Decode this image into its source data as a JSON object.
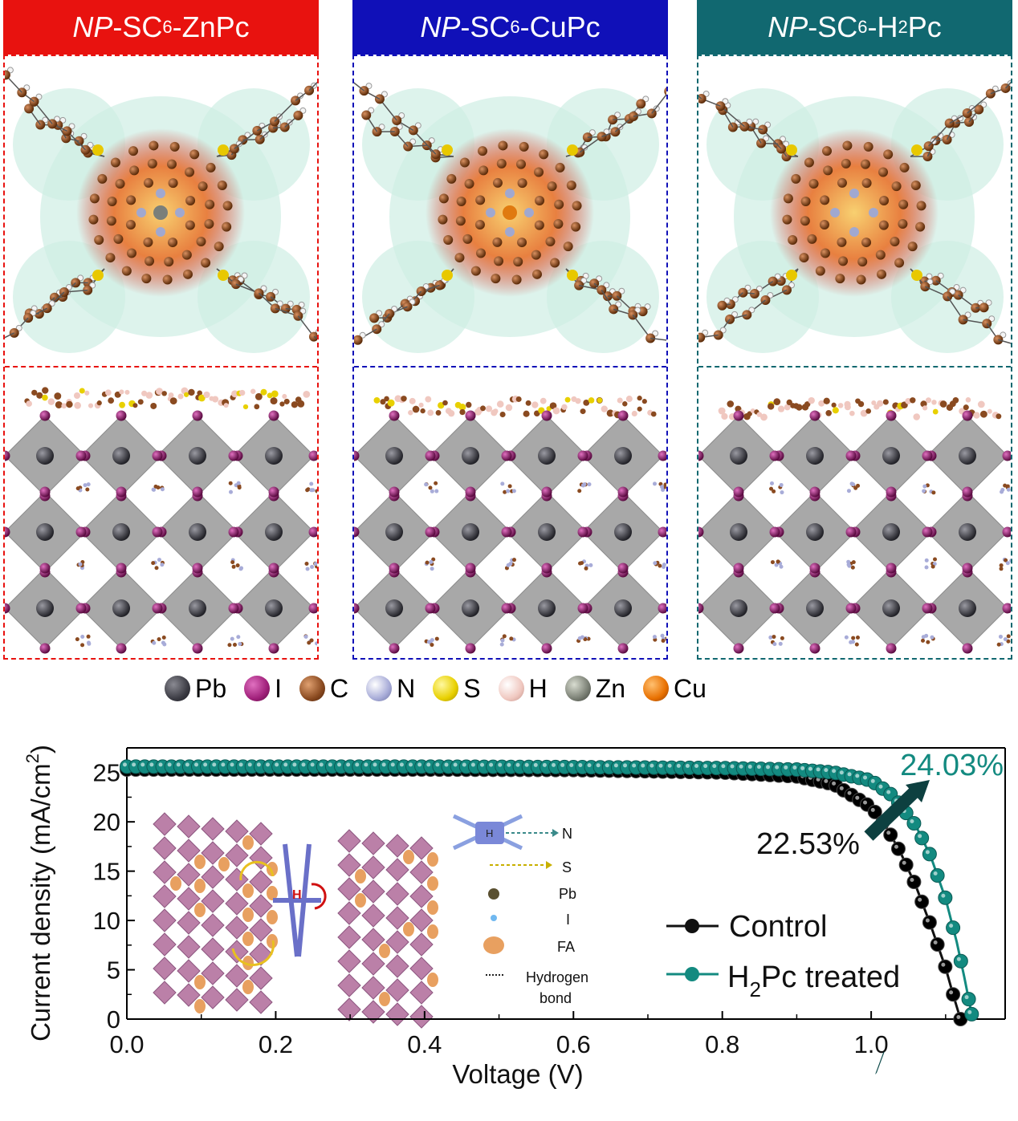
{
  "panels": [
    {
      "label_italic": "NP",
      "label_rest": "-SC",
      "sub": "6",
      "label_tail": "-ZnPc",
      "color": "#e8120f",
      "metal": "#7a7f7a"
    },
    {
      "label_italic": "NP",
      "label_rest": "-SC",
      "sub": "6",
      "label_tail": "-CuPc",
      "color": "#1010b8",
      "metal": "#e07a10"
    },
    {
      "label_italic": "NP",
      "label_rest": "-SC",
      "sub": "6",
      "label_tail": "-H",
      "sub2": "2",
      "label_tail2": "Pc",
      "color": "#116870",
      "metal": "#b08a9a"
    }
  ],
  "legend": [
    {
      "label": "Pb",
      "color": "#3c3c44",
      "icon": "pb-ball-icon"
    },
    {
      "label": "I",
      "color": "#a0207a",
      "icon": "iodine-ball-icon"
    },
    {
      "label": "C",
      "color": "#8a4a20",
      "icon": "carbon-ball-icon"
    },
    {
      "label": "N",
      "color": "#a8acd8",
      "icon": "nitrogen-ball-icon"
    },
    {
      "label": "S",
      "color": "#e8d000",
      "icon": "sulfur-ball-icon"
    },
    {
      "label": "H",
      "color": "#f0c8c0",
      "icon": "hydrogen-ball-icon"
    },
    {
      "label": "Zn",
      "color": "#7a7f74",
      "icon": "zinc-ball-icon"
    },
    {
      "label": "Cu",
      "color": "#e87000",
      "icon": "copper-ball-icon"
    }
  ],
  "chart_data": {
    "type": "line",
    "xlabel": "Voltage (V)",
    "ylabel": "Current density (mA/cm",
    "ylabel_sup": "2",
    "ylabel_close": ")",
    "xlim": [
      0.0,
      1.18
    ],
    "ylim": [
      0,
      27.5
    ],
    "xticks": [
      "0.0",
      "0.2",
      "0.4",
      "0.6",
      "0.8",
      "1.0"
    ],
    "yticks": [
      "0",
      "5",
      "10",
      "15",
      "20",
      "25"
    ],
    "series": [
      {
        "name": "Control",
        "color": "#111111",
        "x": [
          0.0,
          0.2,
          0.4,
          0.6,
          0.8,
          0.9,
          0.95,
          1.0,
          1.02,
          1.04,
          1.06,
          1.08,
          1.1,
          1.11,
          1.12
        ],
        "y": [
          25.3,
          25.3,
          25.3,
          25.25,
          25.0,
          24.6,
          23.8,
          21.5,
          19.5,
          16.8,
          13.5,
          9.5,
          5.2,
          2.5,
          0.0
        ]
      },
      {
        "name": "H2Pc treated",
        "color": "#138a80",
        "x": [
          0.0,
          0.2,
          0.4,
          0.6,
          0.8,
          0.9,
          0.95,
          1.0,
          1.03,
          1.06,
          1.08,
          1.1,
          1.115,
          1.125,
          1.135
        ],
        "y": [
          25.6,
          25.6,
          25.6,
          25.55,
          25.45,
          25.3,
          25.0,
          24.2,
          22.6,
          19.6,
          16.5,
          12.2,
          7.8,
          4.3,
          0.5
        ]
      }
    ],
    "legend_labels": {
      "control": "Control",
      "treated_pre": "H",
      "treated_sub": "2",
      "treated_post": "Pc treated"
    },
    "annotations": {
      "pce_treated": "24.03%",
      "pce_control": "22.53%"
    },
    "inset_legend": {
      "n": "N",
      "h": "H",
      "s": "S",
      "pb": "Pb",
      "i": "I",
      "fa": "FA",
      "hb1": "Hydrogen",
      "hb2": "bond"
    }
  }
}
